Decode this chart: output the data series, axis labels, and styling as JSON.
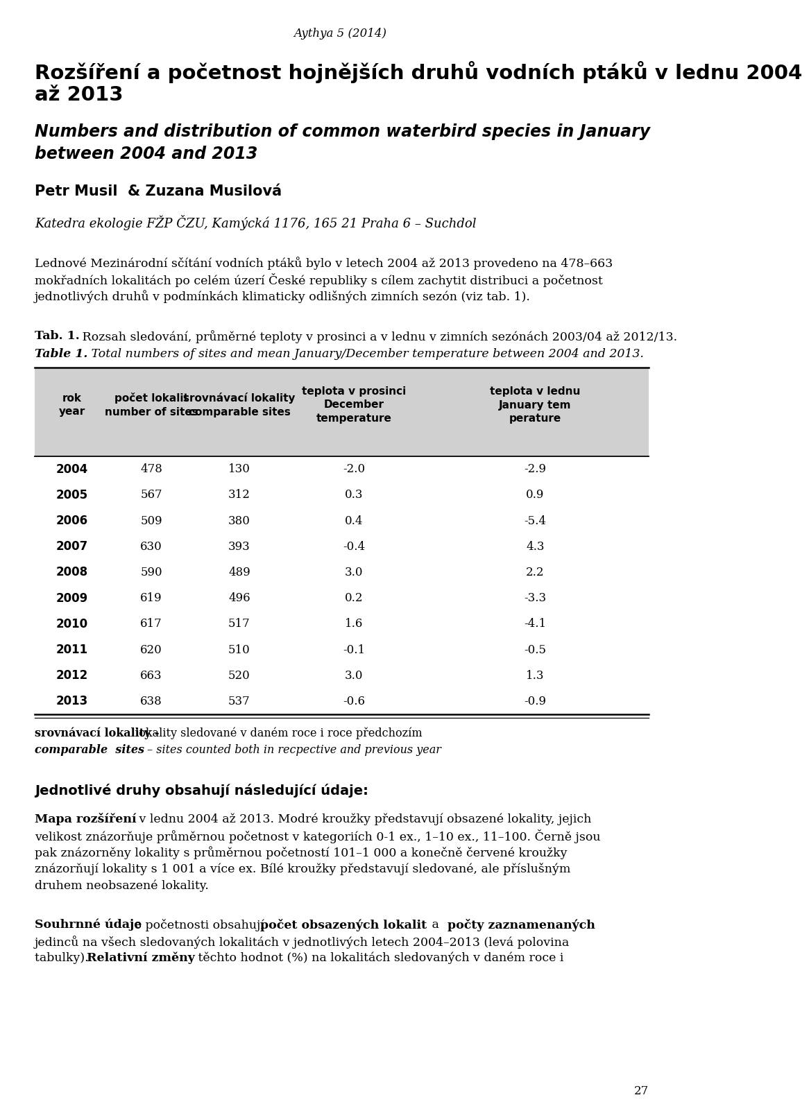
{
  "journal_line": "Aythya 5 (2014)",
  "title_cz_line1": "Rozšíření a početnost hojnějších druhů vodních ptáků v lednu 2004",
  "title_cz_line2": "až 2013",
  "title_en_line1": "Numbers and distribution of common waterbird species in January",
  "title_en_line2": "between 2004 and 2013",
  "authors": "Petr Musil  & Zuzana Musilová",
  "affiliation": "Katedra ekologie FŽP ČZU, Kamýcká 1176, 165 21 Praha 6 – Suchdol",
  "abstract_line1": "Lednové Mezinárodní sčítání vodních ptáků bylo v letech 2004 až 2013 provedeno na 478–663",
  "abstract_line2": "mokřadních lokalitách po celém úzerí České republiky s cílem zachytit distribuci a početnost",
  "abstract_line3": "jednotlivých druhů v podmínkách klimaticky odlišných zimních sezón (viz tab. 1).",
  "tab_label_cz": "Tab. 1.",
  "tab_desc_cz": " Rozsah sledování, průměrné teploty v prosinci a v lednu v zimních sezónách 2003/04 až 2012/13.",
  "tab_label_en": "Table 1.",
  "tab_desc_en": " Total numbers of sites and mean January/December temperature between 2004 and 2013.",
  "table_headers": [
    "rok\nyear",
    "počet lokalit\nnumber of sites",
    "srovnávací lokality\ncomparable sites",
    "teplota v prosinci\nDecember\ntemperature",
    "teplota v lednu\nJanuary tem\nperature"
  ],
  "table_data": [
    [
      "2004",
      "478",
      "130",
      "-2.0",
      "-2.9"
    ],
    [
      "2005",
      "567",
      "312",
      "0.3",
      "0.9"
    ],
    [
      "2006",
      "509",
      "380",
      "0.4",
      "-5.4"
    ],
    [
      "2007",
      "630",
      "393",
      "-0.4",
      "4.3"
    ],
    [
      "2008",
      "590",
      "489",
      "3.0",
      "2.2"
    ],
    [
      "2009",
      "619",
      "496",
      "0.2",
      "-3.3"
    ],
    [
      "2010",
      "617",
      "517",
      "1.6",
      "-4.1"
    ],
    [
      "2011",
      "620",
      "510",
      "-0.1",
      "-0.5"
    ],
    [
      "2012",
      "663",
      "520",
      "3.0",
      "1.3"
    ],
    [
      "2013",
      "638",
      "537",
      "-0.6",
      "-0.9"
    ]
  ],
  "footnote1_bold": "srovnávací lokality - ",
  "footnote1_normal": "lokality sledované v daném roce i roce předchozím",
  "footnote2_bold_italic": "comparable  sites",
  "footnote2_italic": " – sites counted both in recpective and previous year",
  "section_title": "Jednotlivé druhy obsahují následující údaje:",
  "body1_bold": "Mapa rozšíření",
  "body1_line1_rest": " v lednu 2004 až 2013. Modré kroužky představují obsazené lokality, jejich",
  "body1_line2": "velikost znázorňuje průměrnou početnost v kategoriích 0-1 ex., 1–10 ex., 11–100. Černě jsou",
  "body1_line3": "pak znázorněny lokality s průměrnou početností 101–1 000 a konečně červené kroužky",
  "body1_line4": "znázorňují lokality s 1 001 a více ex. Bílé kroužky představují sledované, ale příslušným",
  "body1_line5": "druhem neobsazené lokality.",
  "body2_bold1": "Souhrnné údaje",
  "body2_rest1": " o početnosti obsahují ",
  "body2_bold2": "počet obsazených lokalit",
  "body2_rest2": " a ",
  "body2_bold3": "počty zaznamenaných",
  "body2_line2": "jedinců na všech sledovaných lokalitách v jednotlivých letech 2004–2013 (levá polovina",
  "body2_line3_pre": "tabulky). ",
  "body2_bold4": "Relativní změny",
  "body2_line3_rest": " těchto hodnot (%) na lokalitách sledovaných v daném roce i",
  "page_number": "27",
  "bg_color": "#ffffff",
  "header_bg": "#d0d0d0"
}
